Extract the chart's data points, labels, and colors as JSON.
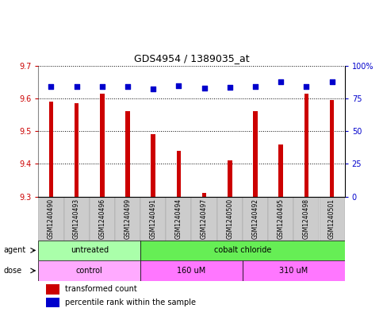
{
  "title": "GDS4954 / 1389035_at",
  "samples": [
    "GSM1240490",
    "GSM1240493",
    "GSM1240496",
    "GSM1240499",
    "GSM1240491",
    "GSM1240494",
    "GSM1240497",
    "GSM1240500",
    "GSM1240492",
    "GSM1240495",
    "GSM1240498",
    "GSM1240501"
  ],
  "bar_values": [
    9.59,
    9.585,
    9.615,
    9.56,
    9.49,
    9.44,
    9.31,
    9.41,
    9.56,
    9.46,
    9.615,
    9.595
  ],
  "percentile_values": [
    83.9,
    83.9,
    83.9,
    83.9,
    82.0,
    84.5,
    83.0,
    83.3,
    83.9,
    87.5,
    83.9,
    87.8
  ],
  "bar_color": "#cc0000",
  "percentile_color": "#0000cc",
  "ylim_left": [
    9.3,
    9.7
  ],
  "ylim_right": [
    0,
    100
  ],
  "yticks_left": [
    9.3,
    9.4,
    9.5,
    9.6,
    9.7
  ],
  "yticks_right": [
    0,
    25,
    50,
    75,
    100
  ],
  "agent_groups": [
    {
      "label": "untreated",
      "start": 0,
      "end": 4,
      "color": "#aaffaa"
    },
    {
      "label": "cobalt chloride",
      "start": 4,
      "end": 12,
      "color": "#66ee55"
    }
  ],
  "dose_groups": [
    {
      "label": "control",
      "start": 0,
      "end": 4,
      "color": "#ffaaff"
    },
    {
      "label": "160 uM",
      "start": 4,
      "end": 8,
      "color": "#ff77ff"
    },
    {
      "label": "310 uM",
      "start": 8,
      "end": 12,
      "color": "#ff77ff"
    }
  ],
  "legend_bar_label": "transformed count",
  "legend_percentile_label": "percentile rank within the sample",
  "agent_label": "agent",
  "dose_label": "dose",
  "tick_color_left": "#cc0000",
  "tick_color_right": "#0000cc",
  "bar_width": 0.18,
  "tick_label_bg": "#cccccc",
  "tick_label_fontsize": 6,
  "title_fontsize": 9
}
